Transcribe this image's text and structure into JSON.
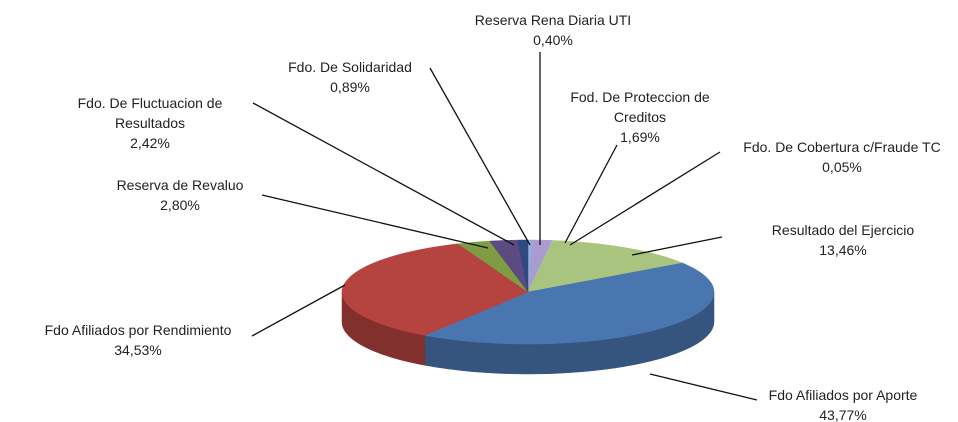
{
  "chart_data": {
    "type": "pie",
    "categories": [
      "Reserva Rena Diaria UTI",
      "Fod. De Proteccion de Creditos",
      "Fdo. De Cobertura c/Fraude TC",
      "Resultado del Ejercicio",
      "Fdo Afiliados por Aporte",
      "Fdo Afiliados por Rendimiento",
      "Reserva de Revaluo",
      "Fdo. De Fluctuacion de Resultados",
      "Fdo. De Solidaridad"
    ],
    "values": [
      0.4,
      1.69,
      0.05,
      13.46,
      43.77,
      34.53,
      2.8,
      2.42,
      0.89
    ],
    "value_labels": [
      "0,40%",
      "1,69%",
      "0,05%",
      "13,46%",
      "43,77%",
      "34,53%",
      "2,80%",
      "2,42%",
      "0,89%"
    ],
    "colors": [
      "#8fb0dc",
      "#aa9cd0",
      "#8ccbe0",
      "#a9c47f",
      "#4a76b0",
      "#b5433f",
      "#7e9c44",
      "#5c4a82",
      "#2f4a80"
    ]
  }
}
